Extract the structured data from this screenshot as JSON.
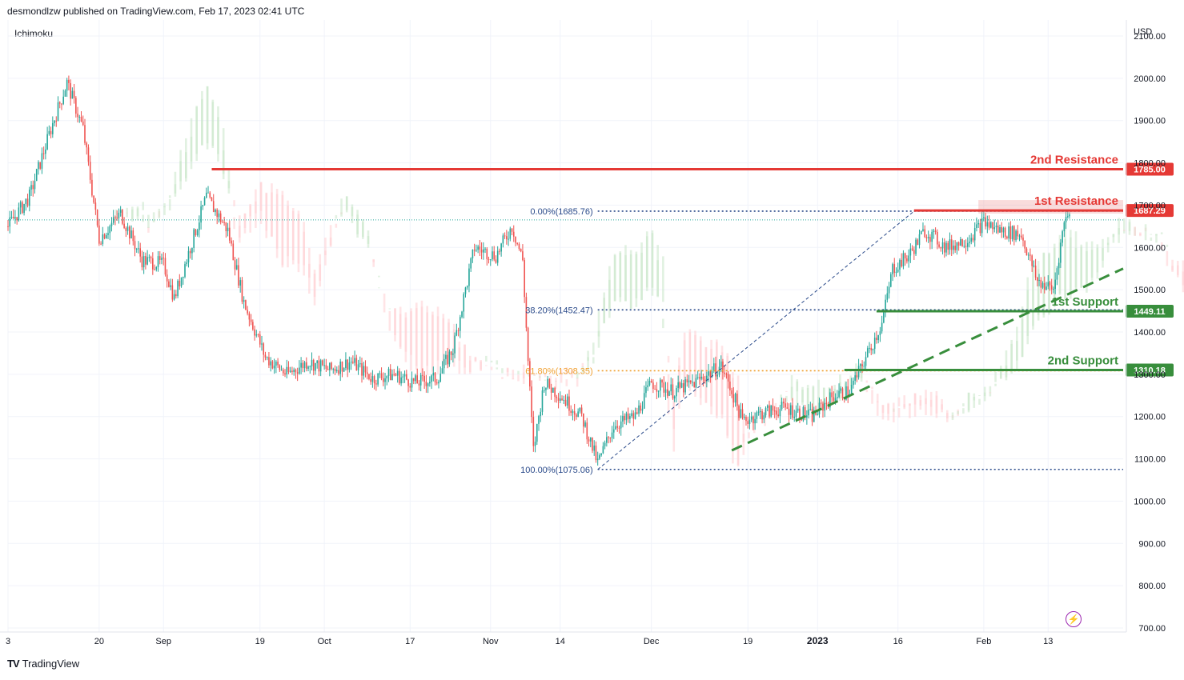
{
  "header": {
    "published_by": "desmondlzw published on TradingView.com, Feb 17, 2023 02:41 UTC",
    "indicator": "Ichimoku",
    "currency": "USD"
  },
  "footer": {
    "logo_text": "TV",
    "brand": "TradingView"
  },
  "icons": {
    "alert": "lightning-icon"
  },
  "colors": {
    "resistance": "#e53935",
    "support": "#388e3c",
    "fib": "#2a4a8a",
    "fib_mid": "#f0a030",
    "up_candle": "#26a69a",
    "down_candle": "#ef5350",
    "cloud_up": "#c8e6c9",
    "cloud_down": "#ffcdd2"
  },
  "chart_data": {
    "type": "candlestick",
    "instrument_currency": "USD",
    "ylim": [
      700,
      2100
    ],
    "y_ticks": [
      "700.00",
      "800.00",
      "900.00",
      "1000.00",
      "1100.00",
      "1200.00",
      "1300.00",
      "1400.00",
      "1500.00",
      "1600.00",
      "1700.00",
      "1800.00",
      "1900.00",
      "2000.00",
      "2100.00"
    ],
    "x_ticks": [
      "3",
      "20",
      "Sep",
      "19",
      "Oct",
      "17",
      "Nov",
      "14",
      "Dec",
      "19",
      "2023",
      "16",
      "Feb",
      "13"
    ],
    "x_range": [
      "2022-08-03",
      "2023-02-27"
    ],
    "levels": [
      {
        "name": "2nd Resistance",
        "value": 1785.0,
        "label": "1785.00",
        "kind": "resistance",
        "from": "2022-09-10"
      },
      {
        "name": "1st Resistance",
        "value": 1687.29,
        "label": "1687.29",
        "kind": "resistance",
        "from": "2023-01-19"
      },
      {
        "name": "1st Support",
        "value": 1449.11,
        "label": "1449.11",
        "kind": "support",
        "from": "2023-01-12"
      },
      {
        "name": "2nd Support",
        "value": 1310.18,
        "label": "1310.18",
        "kind": "support",
        "from": "2023-01-06"
      }
    ],
    "fibonacci": [
      {
        "label": "0.00%(1685.76)",
        "value": 1685.76,
        "color": "fib"
      },
      {
        "label": "38.20%(1452.47)",
        "value": 1452.47,
        "color": "fib"
      },
      {
        "label": "61.80%(1308.35)",
        "value": 1308.35,
        "color": "fib_mid"
      },
      {
        "label": "100.00%(1075.06)",
        "value": 1075.06,
        "color": "fib"
      }
    ],
    "fib_span": [
      "2022-11-21",
      "2023-02-27"
    ],
    "trend_lines": [
      {
        "style": "dashed-thin",
        "from": [
          "2022-11-21",
          1075.06
        ],
        "to": [
          "2023-01-19",
          1685.76
        ]
      },
      {
        "style": "dashed-bold",
        "from": [
          "2022-12-16",
          1120
        ],
        "to": [
          "2023-02-27",
          1550
        ]
      }
    ],
    "price_path": [
      [
        "2022-08-03",
        1650
      ],
      [
        "2022-08-07",
        1720
      ],
      [
        "2022-08-11",
        1880
      ],
      [
        "2022-08-14",
        1990
      ],
      [
        "2022-08-17",
        1880
      ],
      [
        "2022-08-20",
        1620
      ],
      [
        "2022-08-24",
        1680
      ],
      [
        "2022-08-28",
        1570
      ],
      [
        "2022-09-01",
        1560
      ],
      [
        "2022-09-03",
        1480
      ],
      [
        "2022-09-06",
        1600
      ],
      [
        "2022-09-09",
        1720
      ],
      [
        "2022-09-13",
        1640
      ],
      [
        "2022-09-16",
        1470
      ],
      [
        "2022-09-20",
        1340
      ],
      [
        "2022-09-24",
        1300
      ],
      [
        "2022-09-28",
        1330
      ],
      [
        "2022-10-02",
        1310
      ],
      [
        "2022-10-06",
        1330
      ],
      [
        "2022-10-10",
        1290
      ],
      [
        "2022-10-14",
        1300
      ],
      [
        "2022-10-18",
        1280
      ],
      [
        "2022-10-22",
        1290
      ],
      [
        "2022-10-25",
        1360
      ],
      [
        "2022-10-29",
        1600
      ],
      [
        "2022-11-02",
        1580
      ],
      [
        "2022-11-05",
        1650
      ],
      [
        "2022-11-07",
        1570
      ],
      [
        "2022-11-08",
        1330
      ],
      [
        "2022-11-09",
        1120
      ],
      [
        "2022-11-11",
        1280
      ],
      [
        "2022-11-14",
        1250
      ],
      [
        "2022-11-18",
        1200
      ],
      [
        "2022-11-21",
        1090
      ],
      [
        "2022-11-24",
        1180
      ],
      [
        "2022-11-28",
        1200
      ],
      [
        "2022-12-01",
        1280
      ],
      [
        "2022-12-05",
        1260
      ],
      [
        "2022-12-09",
        1280
      ],
      [
        "2022-12-14",
        1320
      ],
      [
        "2022-12-16",
        1260
      ],
      [
        "2022-12-18",
        1190
      ],
      [
        "2022-12-22",
        1210
      ],
      [
        "2022-12-26",
        1220
      ],
      [
        "2022-12-31",
        1200
      ],
      [
        "2023-01-04",
        1250
      ],
      [
        "2023-01-07",
        1260
      ],
      [
        "2023-01-10",
        1340
      ],
      [
        "2023-01-13",
        1420
      ],
      [
        "2023-01-15",
        1550
      ],
      [
        "2023-01-18",
        1580
      ],
      [
        "2023-01-21",
        1640
      ],
      [
        "2023-01-25",
        1600
      ],
      [
        "2023-01-29",
        1620
      ],
      [
        "2023-02-01",
        1660
      ],
      [
        "2023-02-04",
        1640
      ],
      [
        "2023-02-08",
        1630
      ],
      [
        "2023-02-11",
        1520
      ],
      [
        "2023-02-14",
        1500
      ],
      [
        "2023-02-16",
        1660
      ],
      [
        "2023-02-17",
        1690
      ]
    ]
  }
}
